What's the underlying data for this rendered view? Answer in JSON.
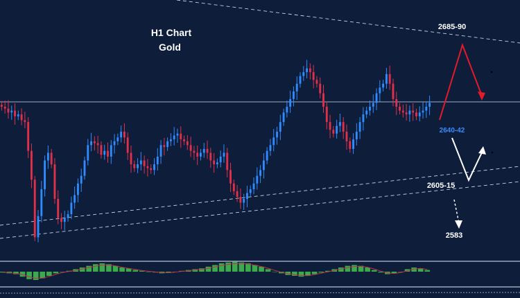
{
  "chart_data": {
    "type": "candlestick",
    "title": "H1 Chart",
    "subtitle": "Gold",
    "x_range": [
      0,
      150
    ],
    "y_range": [
      2570,
      2700
    ],
    "colors": {
      "background": "#0d1d3a",
      "bull": "#2f8cff",
      "bear": "#e0304a",
      "macd_bar": "#3aaa4a",
      "signal": "#c0304a",
      "up_arrow": "#e21b2b",
      "down_arrow": "#ffffff",
      "label_highlight": "#3b8cff",
      "label_text": "#ffffff"
    },
    "levels": {
      "target_high": "2685-90",
      "resistance": "2640-42",
      "support": "2605-15",
      "target_low": "2583"
    },
    "closes": [
      2648,
      2647,
      2645,
      2646,
      2643,
      2644,
      2641,
      2640,
      2625,
      2610,
      2580,
      2591,
      2605,
      2620,
      2624,
      2618,
      2600,
      2590,
      2588,
      2590,
      2592,
      2598,
      2602,
      2608,
      2612,
      2620,
      2628,
      2630,
      2629,
      2628,
      2623,
      2625,
      2622,
      2628,
      2630,
      2632,
      2635,
      2632,
      2624,
      2618,
      2616,
      2618,
      2620,
      2617,
      2616,
      2615,
      2618,
      2622,
      2628,
      2627,
      2630,
      2631,
      2633,
      2634,
      2631,
      2630,
      2628,
      2625,
      2624,
      2622,
      2624,
      2626,
      2624,
      2620,
      2618,
      2619,
      2622,
      2624,
      2615,
      2608,
      2604,
      2601,
      2598,
      2600,
      2603,
      2605,
      2608,
      2612,
      2615,
      2620,
      2625,
      2628,
      2632,
      2635,
      2640,
      2645,
      2648,
      2652,
      2656,
      2660,
      2664,
      2666,
      2668,
      2666,
      2662,
      2660,
      2655,
      2648,
      2640,
      2636,
      2634,
      2638,
      2640,
      2635,
      2630,
      2626,
      2631,
      2635,
      2640,
      2644,
      2646,
      2648,
      2650,
      2655,
      2658,
      2660,
      2665,
      2660,
      2652,
      2648,
      2646,
      2645,
      2644,
      2646,
      2645,
      2643,
      2645,
      2646,
      2648,
      2650
    ],
    "macd_hist": [
      -0.1,
      -0.2,
      -0.3,
      -0.6,
      -0.9,
      -1.0,
      -0.8,
      -0.5,
      -0.2,
      0.0,
      0.1,
      0.3,
      0.5,
      0.7,
      0.9,
      1.0,
      0.9,
      0.7,
      0.5,
      0.4,
      0.2,
      0.1,
      0.0,
      -0.1,
      -0.2,
      -0.1,
      0.0,
      0.1,
      0.2,
      0.3,
      0.4,
      0.6,
      0.8,
      1.0,
      1.1,
      1.2,
      1.1,
      1.0,
      0.8,
      0.6,
      0.3,
      0.0,
      -0.2,
      -0.4,
      -0.5,
      -0.6,
      -0.5,
      -0.3,
      -0.1,
      0.1,
      0.3,
      0.5,
      0.7,
      0.8,
      0.7,
      0.5,
      0.2,
      -0.1,
      -0.3,
      -0.2,
      0.0,
      0.3,
      0.5,
      0.4,
      0.2
    ]
  }
}
